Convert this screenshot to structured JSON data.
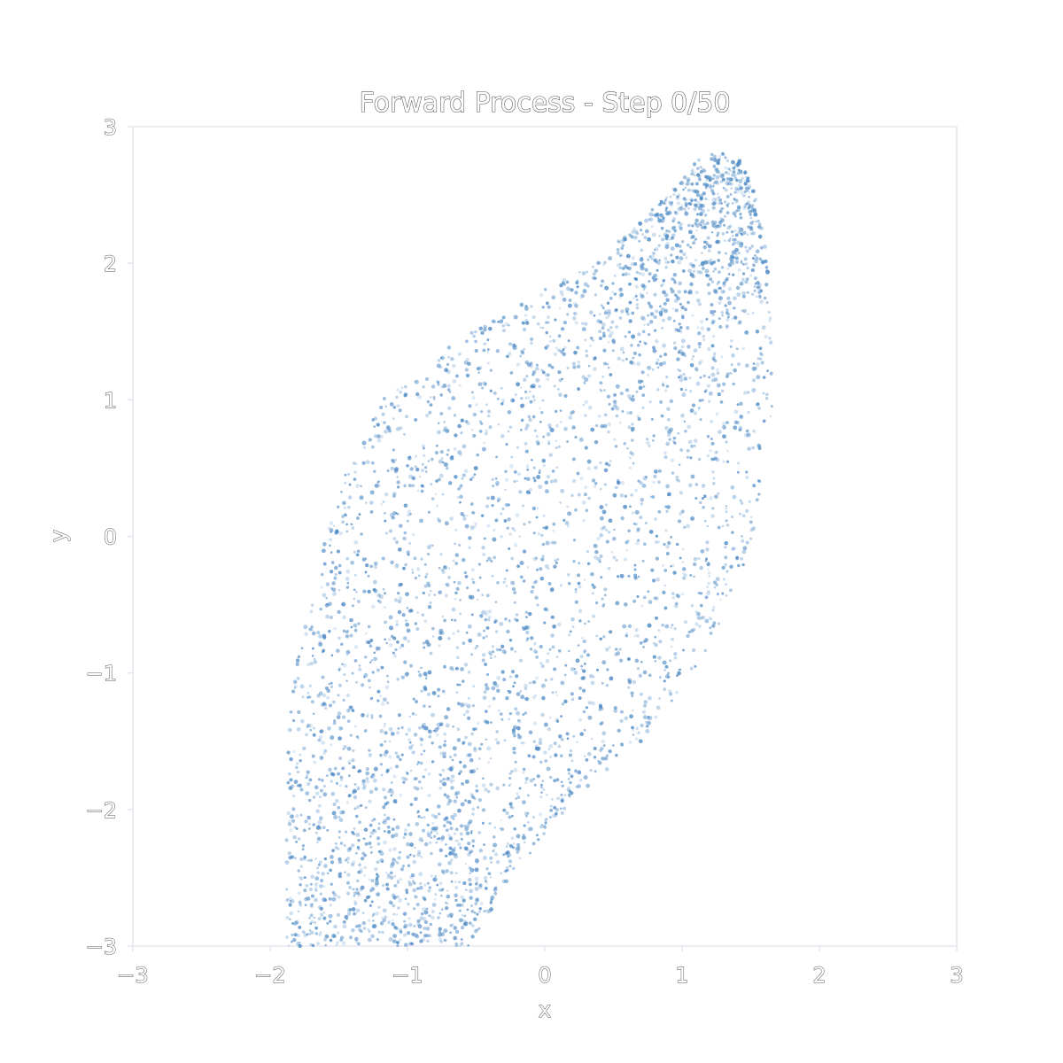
{
  "chart_data": {
    "type": "scatter",
    "title": "Forward Process - Step 0/50",
    "xlabel": "x",
    "ylabel": "y",
    "xlim": [
      -3,
      3
    ],
    "ylim": [
      -3,
      3
    ],
    "xticks": [
      "−3",
      "−2",
      "−1",
      "0",
      "1",
      "2",
      "3"
    ],
    "yticks": [
      "3",
      "2",
      "1",
      "0",
      "−1",
      "−2",
      "−3"
    ],
    "grid": false,
    "legend": "none",
    "point_color": "#4a88c4",
    "point_opacity": 0.3,
    "point_count_approx": 8000,
    "region_description": "points fill a slanted band between two sinusoidal edges",
    "series": [
      {
        "region_bounds": {
          "y": [
            -3.0,
            -2.5,
            -2.0,
            -1.5,
            -1.0,
            -0.5,
            0.0,
            0.5,
            1.0,
            1.5,
            2.0,
            2.5,
            2.8
          ],
          "x_left": [
            -1.88,
            -1.88,
            -1.88,
            -1.87,
            -1.82,
            -1.72,
            -1.6,
            -1.45,
            -1.18,
            -0.55,
            0.35,
            0.9,
            1.15
          ],
          "x_right": [
            -0.55,
            -0.25,
            0.15,
            0.7,
            1.1,
            1.35,
            1.52,
            1.6,
            1.66,
            1.66,
            1.62,
            1.55,
            1.4
          ]
        }
      }
    ]
  }
}
